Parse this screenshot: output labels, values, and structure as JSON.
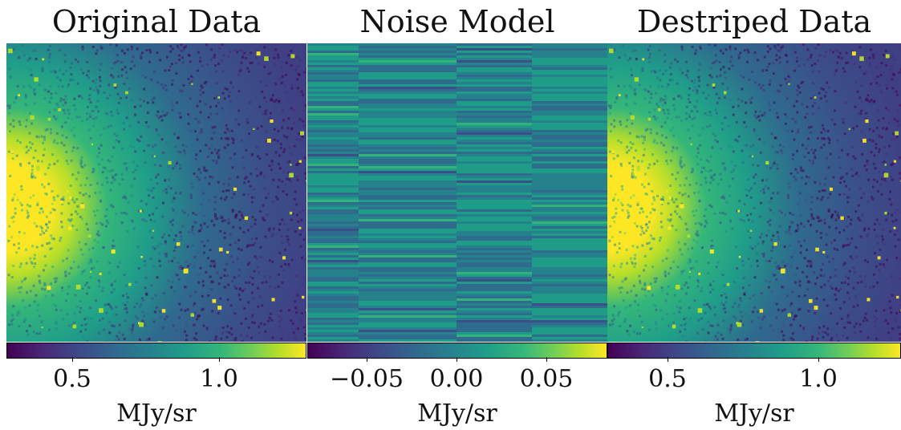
{
  "panels": [
    {
      "title": "Original Data",
      "colorbar": {
        "ticks": [
          "0.5",
          "1.0"
        ],
        "unit": "MJy/sr"
      }
    },
    {
      "title": "Noise Model",
      "colorbar": {
        "ticks": [
          "−0.05",
          "0.00",
          "0.05"
        ],
        "unit": "MJy/sr"
      }
    },
    {
      "title": "Destriped Data",
      "colorbar": {
        "ticks": [
          "0.5",
          "1.0"
        ],
        "unit": "MJy/sr"
      }
    }
  ],
  "colormap": {
    "name": "viridis",
    "stops": [
      "#440154",
      "#482878",
      "#3e4a89",
      "#31688e",
      "#26828e",
      "#1f9e89",
      "#35b779",
      "#6ece58",
      "#b5de2b",
      "#fde725"
    ]
  }
}
